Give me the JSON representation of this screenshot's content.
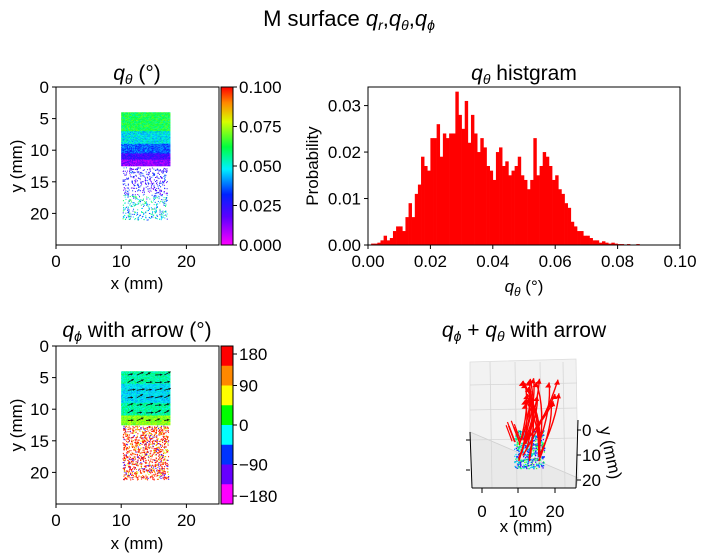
{
  "figure": {
    "suptitle": "M surface qr,qθ,qϕ"
  },
  "chart_data": [
    {
      "id": "qtheta-map",
      "type": "heatmap",
      "title": "qθ (°)",
      "xlabel": "x (mm)",
      "ylabel": "y (mm)",
      "xlim": [
        0,
        25
      ],
      "ylim": [
        25,
        0
      ],
      "xticks": [
        "0",
        "10",
        "20"
      ],
      "yticks": [
        "0",
        "5",
        "10",
        "15",
        "20"
      ],
      "colorbar": {
        "range": [
          0,
          0.1
        ],
        "ticks": [
          "0.000",
          "0.025",
          "0.050",
          "0.075",
          "0.100"
        ],
        "colormap": "gist_rainbow_r"
      },
      "regions": [
        {
          "name": "upper",
          "x": [
            10,
            17.5
          ],
          "y": [
            4,
            12.5
          ],
          "dense": true
        },
        {
          "name": "lower",
          "x": [
            10,
            17
          ],
          "y": [
            12.5,
            21
          ],
          "dense": false
        }
      ]
    },
    {
      "id": "qtheta-hist",
      "type": "bar",
      "title": "qθ histgram",
      "xlabel": "qθ (°)",
      "ylabel": "Probability",
      "xlim": [
        0,
        0.1
      ],
      "ylim": [
        0,
        0.034
      ],
      "xticks": [
        "0.00",
        "0.02",
        "0.04",
        "0.06",
        "0.08",
        "0.10"
      ],
      "yticks": [
        "0.00",
        "0.01",
        "0.02",
        "0.03"
      ],
      "color": "#ff0000",
      "bin_width": 0.001,
      "bin_start": 0.001,
      "values": [
        0.0003,
        0.0003,
        0.0005,
        0.001,
        0.002,
        0.001,
        0.0015,
        0.003,
        0.004,
        0.004,
        0.003,
        0.006,
        0.009,
        0.006,
        0.011,
        0.013,
        0.019,
        0.017,
        0.016,
        0.023,
        0.023,
        0.026,
        0.019,
        0.024,
        0.023,
        0.024,
        0.024,
        0.033,
        0.028,
        0.025,
        0.031,
        0.022,
        0.028,
        0.024,
        0.02,
        0.023,
        0.021,
        0.017,
        0.016,
        0.014,
        0.02,
        0.021,
        0.017,
        0.018,
        0.015,
        0.016,
        0.017,
        0.019,
        0.015,
        0.014,
        0.012,
        0.014,
        0.023,
        0.015,
        0.017,
        0.02,
        0.019,
        0.017,
        0.014,
        0.015,
        0.012,
        0.011,
        0.009,
        0.008,
        0.005,
        0.004,
        0.003,
        0.003,
        0.002,
        0.002,
        0.0015,
        0.001,
        0.001,
        0.0005,
        0.0008,
        0.0005,
        0.0003,
        0.0005,
        0.0003,
        0.0002,
        0.0002,
        0.0001,
        0.0002,
        0.0001,
        0.0001,
        0.0002,
        0.0001
      ]
    },
    {
      "id": "qphi-map",
      "type": "heatmap",
      "title": "qϕ with arrow (°)",
      "xlabel": "x (mm)",
      "ylabel": "y (mm)",
      "xlim": [
        0,
        25
      ],
      "ylim": [
        25,
        0
      ],
      "xticks": [
        "0",
        "10",
        "20"
      ],
      "yticks": [
        "0",
        "5",
        "10",
        "15",
        "20"
      ],
      "colorbar": {
        "range": [
          -180,
          180
        ],
        "ticks": [
          "180",
          "90",
          "0",
          "−90",
          "−180"
        ],
        "colormap": "gist_rainbow_r (8 levels)",
        "levels": [
          "#ff0000",
          "#ff8800",
          "#ffff00",
          "#00ff00",
          "#00ffff",
          "#0033ff",
          "#6600ff",
          "#ff00ff"
        ]
      }
    },
    {
      "id": "qphi-qtheta-3d",
      "type": "scatter",
      "title": "qϕ + qθ with arrow",
      "xlabel": "x (mm)",
      "ylabel": "y (mm)",
      "xticks": [
        "0",
        "10",
        "20"
      ],
      "yticks": [
        "0",
        "10",
        "20"
      ]
    }
  ]
}
